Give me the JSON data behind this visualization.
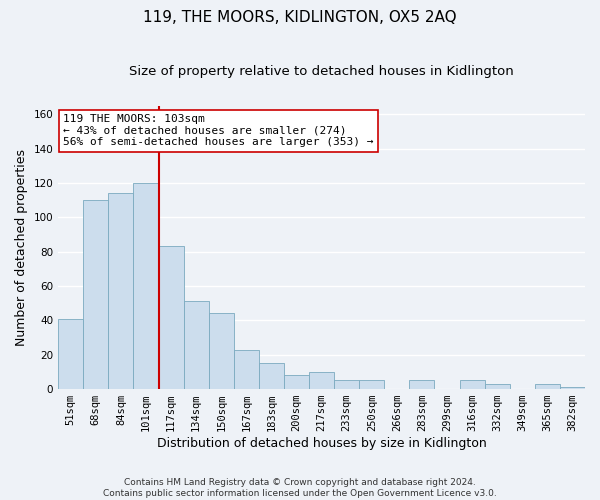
{
  "title": "119, THE MOORS, KIDLINGTON, OX5 2AQ",
  "subtitle": "Size of property relative to detached houses in Kidlington",
  "xlabel": "Distribution of detached houses by size in Kidlington",
  "ylabel": "Number of detached properties",
  "bar_color": "#ccdded",
  "bar_edge_color": "#7aaabf",
  "categories": [
    "51sqm",
    "68sqm",
    "84sqm",
    "101sqm",
    "117sqm",
    "134sqm",
    "150sqm",
    "167sqm",
    "183sqm",
    "200sqm",
    "217sqm",
    "233sqm",
    "250sqm",
    "266sqm",
    "283sqm",
    "299sqm",
    "316sqm",
    "332sqm",
    "349sqm",
    "365sqm",
    "382sqm"
  ],
  "values": [
    41,
    110,
    114,
    120,
    83,
    51,
    44,
    23,
    15,
    8,
    10,
    5,
    5,
    0,
    5,
    0,
    5,
    3,
    0,
    3,
    1
  ],
  "vline_x": 3.5,
  "vline_color": "#cc0000",
  "annotation_text": "119 THE MOORS: 103sqm\n← 43% of detached houses are smaller (274)\n56% of semi-detached houses are larger (353) →",
  "annotation_box_color": "#ffffff",
  "annotation_box_edge_color": "#cc0000",
  "ylim": [
    0,
    165
  ],
  "yticks": [
    0,
    20,
    40,
    60,
    80,
    100,
    120,
    140,
    160
  ],
  "footer": "Contains HM Land Registry data © Crown copyright and database right 2024.\nContains public sector information licensed under the Open Government Licence v3.0.",
  "background_color": "#eef2f7",
  "grid_color": "#ffffff",
  "title_fontsize": 11,
  "subtitle_fontsize": 9.5,
  "xlabel_fontsize": 9,
  "ylabel_fontsize": 9,
  "tick_fontsize": 7.5,
  "footer_fontsize": 6.5,
  "annotation_fontsize": 8
}
